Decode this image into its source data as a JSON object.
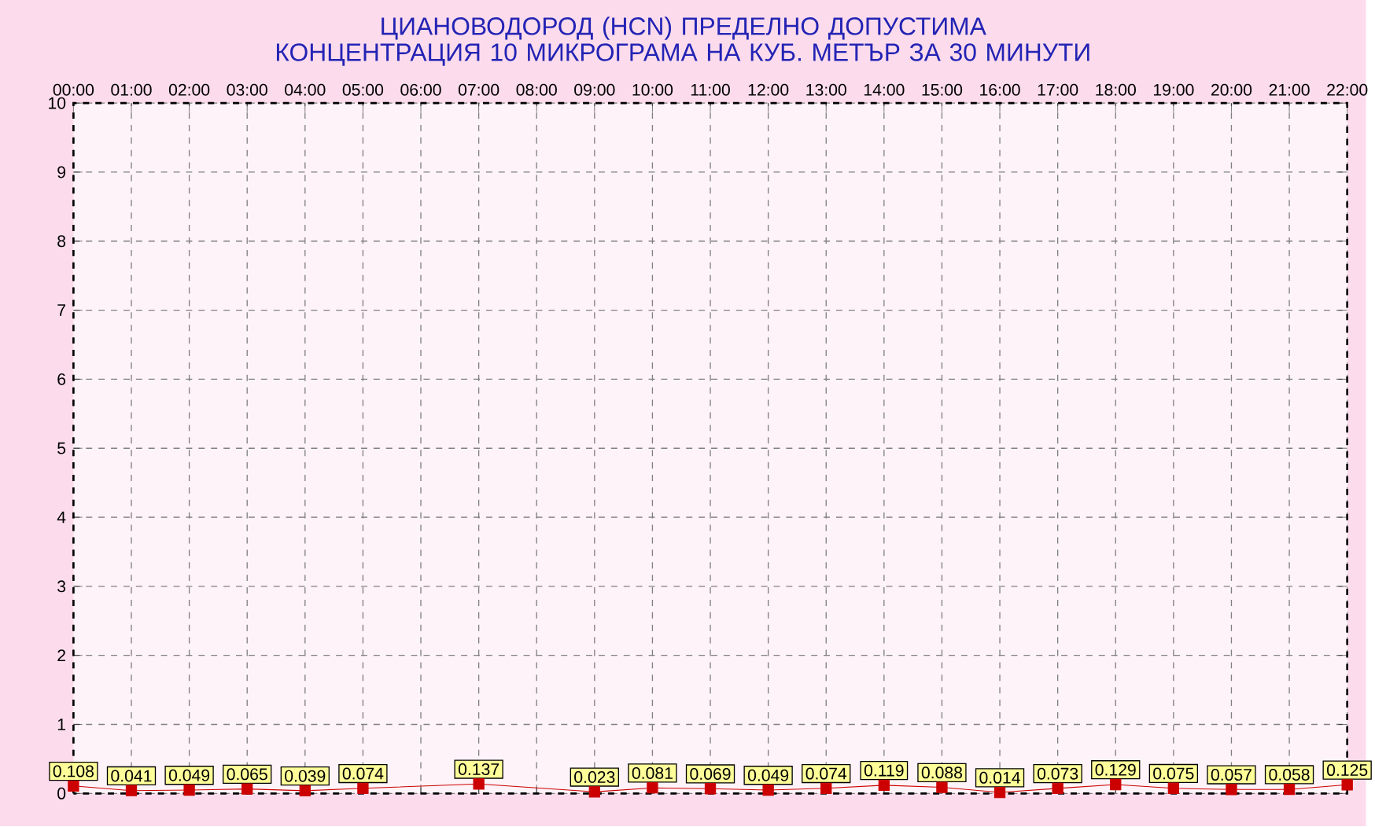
{
  "chart_data": {
    "type": "line",
    "title": "ЦИАНОВОДОРОД      (HCN)    ПРЕДЕЛНО ДОПУСТИМА КОНЦЕНТРАЦИЯ 10 МИКРОГРАМА  НА КУБ. МЕТЪР ЗА 30 МИНУТИ",
    "categories": [
      "00:00",
      "01:00",
      "02:00",
      "03:00",
      "04:00",
      "05:00",
      "06:00",
      "07:00",
      "08:00",
      "09:00",
      "10:00",
      "11:00",
      "12:00",
      "13:00",
      "14:00",
      "15:00",
      "16:00",
      "17:00",
      "18:00",
      "19:00",
      "20:00",
      "21:00",
      "22:00"
    ],
    "values": [
      0.108,
      0.041,
      0.049,
      0.065,
      0.039,
      0.074,
      null,
      0.137,
      null,
      0.023,
      0.081,
      0.069,
      0.049,
      0.074,
      0.119,
      0.088,
      0.014,
      0.073,
      0.129,
      0.075,
      0.057,
      0.058,
      0.125
    ],
    "color": "#cc0000",
    "ylim": [
      0,
      10
    ],
    "yticks": [
      0,
      1,
      2,
      3,
      4,
      5,
      6,
      7,
      8,
      9,
      10
    ],
    "grid": true,
    "marker": "square",
    "line_style": "solid",
    "data_labels": true
  }
}
